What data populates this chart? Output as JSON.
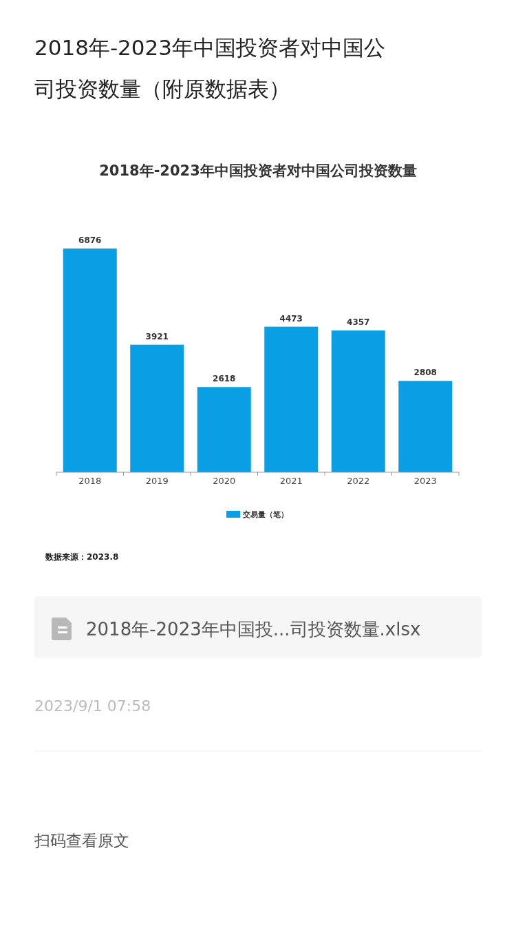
{
  "chart_data": {
    "type": "bar",
    "title": "2018年-2023年中国投资者对中国公司投资数量（附原数据表）",
    "subtitle": "2018年-2023年中国投资者对中国公司投资数量",
    "categories": [
      "2018",
      "2019",
      "2020",
      "2021",
      "2022",
      "2023"
    ],
    "series": [
      {
        "name": "交易量（笔）",
        "color": "#0a9fe4",
        "values": [
          6876,
          3921,
          2618,
          4473,
          4357,
          2808
        ]
      }
    ],
    "data_labels": true,
    "legend": "bottom",
    "annotations": [
      "数据来源：2023.8",
      "2018年-2023年中国投...司投资数量.xlsx",
      "2023/9/1 07:58",
      "扫码查看原文"
    ]
  }
}
